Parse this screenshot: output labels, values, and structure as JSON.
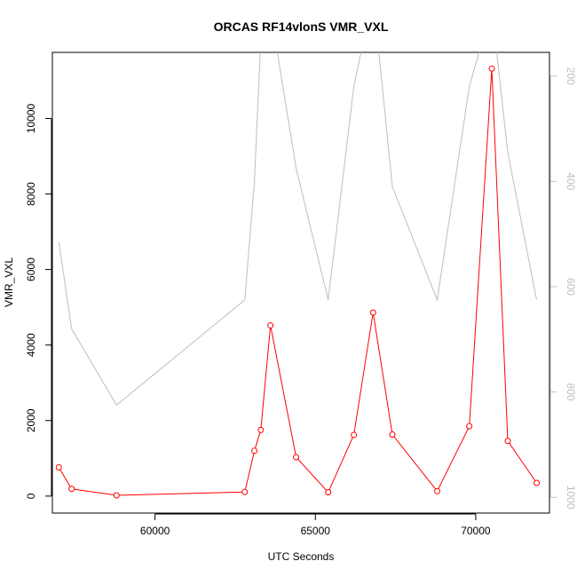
{
  "chart_data": {
    "type": "line",
    "title": "ORCAS RF14vlonS VMR_VXL",
    "xlabel": "UTC Seconds",
    "ylabel": "VMR_VXL",
    "xlim": [
      56800,
      72300
    ],
    "ylim": [
      -450,
      11750
    ],
    "y2lim": [
      1030,
      155
    ],
    "y2_reversed": true,
    "x_ticks": [
      60000,
      65000,
      70000
    ],
    "y_ticks": [
      0,
      2000,
      4000,
      6000,
      8000,
      10000
    ],
    "y2_ticks": [
      200,
      400,
      600,
      800,
      1000
    ],
    "grid": false,
    "colors": {
      "primary": "#ff0000",
      "secondary": "#bebebe",
      "axis": "#000000"
    },
    "series": [
      {
        "axis": "left",
        "color": "#ff0000",
        "markers": true,
        "x": [
          57000,
          57400,
          58800,
          62800,
          63100,
          63300,
          63600,
          64400,
          65400,
          66200,
          66800,
          67400,
          68800,
          69800,
          70500,
          71000,
          71900
        ],
        "y": [
          760,
          190,
          20,
          110,
          1200,
          1750,
          4520,
          1030,
          100,
          1620,
          4860,
          1630,
          130,
          1850,
          11320,
          1460,
          350
        ]
      },
      {
        "axis": "right",
        "color": "#bebebe",
        "markers": false,
        "x": [
          57000,
          57400,
          58800,
          62800,
          63100,
          63300,
          63600,
          64400,
          65400,
          66200,
          66800,
          67400,
          68800,
          69800,
          70500,
          71000,
          71900
        ],
        "y": [
          515,
          680,
          825,
          625,
          400,
          130,
          75,
          375,
          625,
          220,
          45,
          410,
          625,
          220,
          70,
          345,
          625
        ]
      }
    ]
  }
}
